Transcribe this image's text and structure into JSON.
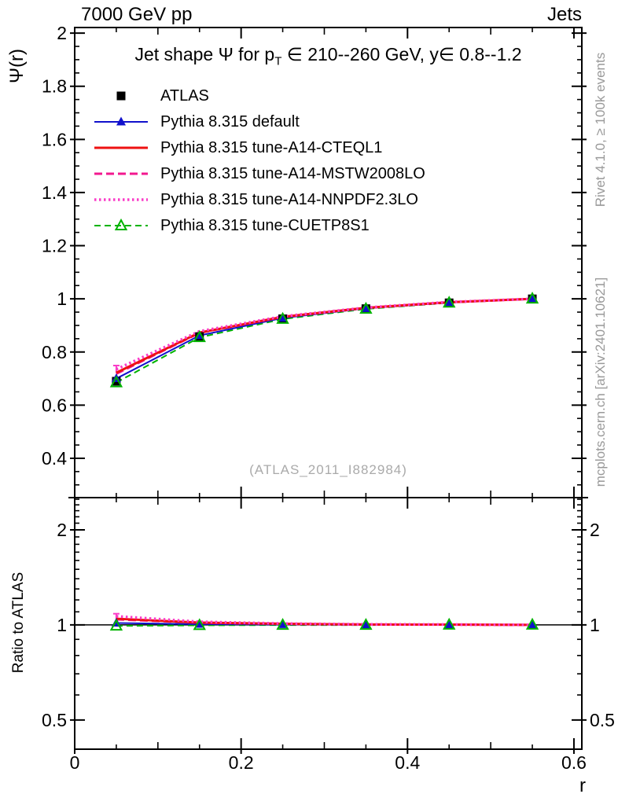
{
  "header": {
    "left": "7000 GeV pp",
    "right": "Jets"
  },
  "title": {
    "pre": "Jet shape Ψ for p",
    "sub": "T",
    "post": " ∈ 210--260 GeV, y∈ 0.8--1.2"
  },
  "watermark": "(ATLAS_2011_I882984)",
  "side_notes": {
    "top": "Rivet 4.1.0, ≥ 100k events",
    "bottom": "mcplots.cern.ch [arXiv:2401.10621]"
  },
  "axes": {
    "main_ylabel": "Ψ(r)",
    "ratio_ylabel": "Ratio to ATLAS",
    "xlabel": "r",
    "xlim": [
      0,
      0.6095
    ],
    "main_ylim": [
      0.252,
      2.021
    ],
    "ratio_ylim": [
      0.404,
      2.53
    ],
    "ratio_scale": "log",
    "x_major": {
      "values": [
        0,
        0.2,
        0.4,
        0.6
      ],
      "labels": [
        "0",
        "0.2",
        "0.4",
        "0.6"
      ]
    },
    "main_y_major": {
      "values": [
        0.4,
        0.6,
        0.8,
        1,
        1.2,
        1.4,
        1.6,
        1.8,
        2
      ],
      "labels": [
        "0.4",
        "0.6",
        "0.8",
        "1",
        "1.2",
        "1.4",
        "1.6",
        "1.8",
        "2"
      ]
    },
    "ratio_y_major": {
      "values": [
        0.5,
        1,
        2
      ],
      "labels": [
        "0.5",
        "1",
        "2"
      ]
    },
    "ratio_y_minor": [
      0.6,
      0.7,
      0.8,
      0.9,
      1.1,
      1.2,
      1.3,
      1.4,
      1.5,
      1.6,
      1.7,
      1.8,
      1.9,
      2.1,
      2.2,
      2.3,
      2.4,
      2.5
    ]
  },
  "colors": {
    "frame": "#000000",
    "atlas": "#000000",
    "blue": "#1111cc",
    "red": "#ee1111",
    "deeppink": "#f2188f",
    "magenta": "#fa3cc8",
    "green": "#00b300",
    "gray_note": "#999999",
    "watermark_gray": "#aaaaaa"
  },
  "chart_data": {
    "type": "line",
    "title": "Jet shape Ψ for pT ∈ 210--260 GeV, y∈ 0.8--1.2",
    "xlabel": "r",
    "ylabel": "Ψ(r)",
    "ratio_label": "Ratio to ATLAS",
    "x": [
      0.05,
      0.15,
      0.25,
      0.35,
      0.45,
      0.55
    ],
    "series": [
      {
        "name": "ATLAS",
        "style": {
          "color": "#000000",
          "line": false,
          "dash": "",
          "width": 0,
          "marker": "square-filled"
        },
        "psi": [
          0.69,
          0.858,
          0.925,
          0.963,
          0.985,
          1.0
        ],
        "ratio": [
          1.0,
          1.0,
          1.0,
          1.0,
          1.0,
          1.0
        ]
      },
      {
        "name": "Pythia 8.315 default",
        "style": {
          "color": "#1111cc",
          "line": true,
          "dash": "",
          "width": 2,
          "marker": "triangle-filled"
        },
        "psi": [
          0.7,
          0.862,
          0.928,
          0.964,
          0.986,
          1.0
        ],
        "ratio": [
          1.014,
          1.005,
          1.003,
          1.001,
          1.001,
          1.0
        ]
      },
      {
        "name": "Pythia 8.315 tune-A14-CTEQL1",
        "style": {
          "color": "#ee1111",
          "line": true,
          "dash": "",
          "width": 3,
          "marker": "none"
        },
        "psi": [
          0.722,
          0.873,
          0.932,
          0.966,
          0.987,
          1.0
        ],
        "ratio": [
          1.046,
          1.017,
          1.008,
          1.003,
          1.002,
          1.0
        ]
      },
      {
        "name": "Pythia 8.315 tune-A14-MSTW2008LO",
        "style": {
          "color": "#f2188f",
          "line": true,
          "dash": "10,5",
          "width": 3,
          "marker": "none"
        },
        "psi": [
          0.718,
          0.872,
          0.932,
          0.966,
          0.987,
          1.0
        ],
        "ratio": [
          1.041,
          1.016,
          1.008,
          1.003,
          1.002,
          1.0
        ]
      },
      {
        "name": "Pythia 8.315 tune-A14-NNPDF2.3LO",
        "style": {
          "color": "#fa3cc8",
          "line": true,
          "dash": "2.5,3.5",
          "width": 3.5,
          "marker": "none"
        },
        "psi": [
          0.735,
          0.878,
          0.934,
          0.967,
          0.988,
          1.0
        ],
        "ratio": [
          1.065,
          1.023,
          1.01,
          1.004,
          1.003,
          1.0
        ]
      },
      {
        "name": "Pythia 8.315 tune-CUETP8S1",
        "style": {
          "color": "#00b300",
          "line": true,
          "dash": "8,5",
          "width": 2,
          "marker": "triangle-open"
        },
        "psi": [
          0.685,
          0.855,
          0.924,
          0.962,
          0.985,
          1.0
        ],
        "ratio": [
          0.993,
          0.997,
          0.999,
          0.999,
          1.0,
          1.0
        ]
      }
    ],
    "error_bars": [
      {
        "series_index": 4,
        "x": 0.05,
        "main_range": [
          0.722,
          0.749
        ],
        "ratio_range": [
          1.042,
          1.085
        ]
      }
    ],
    "reference_line_ratio": 1.0,
    "legend_position": "top-left",
    "grid": false
  }
}
